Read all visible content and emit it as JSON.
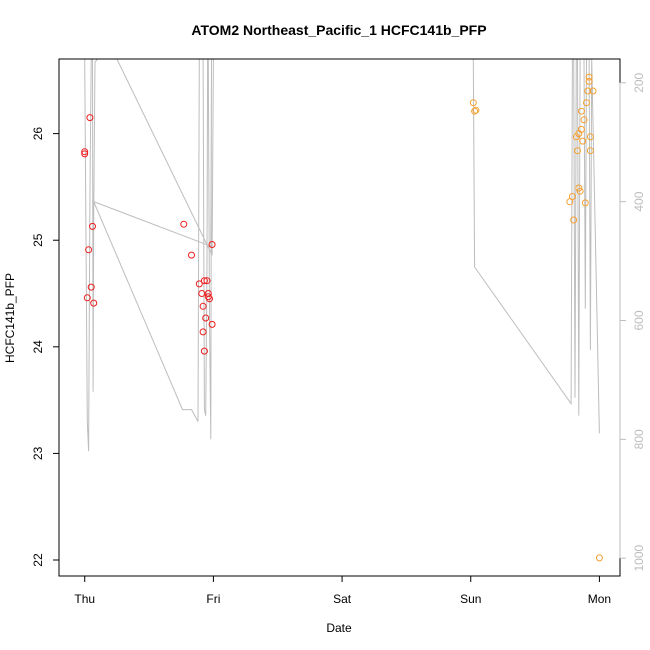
{
  "chart_data": {
    "type": "scatter",
    "title": "ATOM2 Northeast_Pacific_1 HCFC141b_PFP",
    "xlabel": "Date",
    "ylabel": "HCFC141b_PFP",
    "x_ticks": [
      {
        "label": "Thu",
        "value": 0
      },
      {
        "label": "Fri",
        "value": 1
      },
      {
        "label": "Sat",
        "value": 2
      },
      {
        "label": "Sun",
        "value": 3
      },
      {
        "label": "Mon",
        "value": 4
      }
    ],
    "xlim": [
      -0.2,
      4.16
    ],
    "ylim": [
      21.85,
      26.7
    ],
    "y_ticks": [
      22,
      23,
      24,
      25,
      26
    ],
    "y2_ticks": [
      200,
      400,
      600,
      800,
      1000
    ],
    "y2lim": [
      1030,
      160
    ],
    "grid": false,
    "colors": {
      "series_red": "#ee1c1c",
      "series_orange": "#f5a030",
      "altitude_line": "#bdbdbd",
      "axis": "#000000"
    },
    "series": [
      {
        "color": "red",
        "points": [
          [
            0.0,
            25.83
          ],
          [
            0.0,
            25.81
          ],
          [
            0.02,
            24.46
          ],
          [
            0.03,
            24.91
          ],
          [
            0.04,
            26.15
          ],
          [
            0.05,
            24.56
          ],
          [
            0.06,
            25.13
          ],
          [
            0.07,
            24.41
          ],
          [
            0.77,
            25.15
          ],
          [
            0.83,
            24.86
          ],
          [
            0.89,
            24.59
          ],
          [
            0.91,
            24.5
          ],
          [
            0.92,
            24.38
          ],
          [
            0.92,
            24.14
          ],
          [
            0.93,
            23.96
          ],
          [
            0.93,
            24.62
          ],
          [
            0.94,
            24.27
          ],
          [
            0.95,
            24.62
          ],
          [
            0.96,
            24.47
          ],
          [
            0.96,
            24.5
          ],
          [
            0.97,
            24.45
          ],
          [
            0.99,
            24.96
          ],
          [
            0.99,
            24.21
          ]
        ]
      },
      {
        "color": "orange",
        "points": [
          [
            3.02,
            26.29
          ],
          [
            3.03,
            26.21
          ],
          [
            3.04,
            26.22
          ],
          [
            3.77,
            25.36
          ],
          [
            3.79,
            25.41
          ],
          [
            3.8,
            25.19
          ],
          [
            3.82,
            25.97
          ],
          [
            3.83,
            25.84
          ],
          [
            3.84,
            26.0
          ],
          [
            3.84,
            25.49
          ],
          [
            3.85,
            25.46
          ],
          [
            3.86,
            26.04
          ],
          [
            3.86,
            26.21
          ],
          [
            3.87,
            25.93
          ],
          [
            3.88,
            26.13
          ],
          [
            3.89,
            25.35
          ],
          [
            3.9,
            26.29
          ],
          [
            3.91,
            26.4
          ],
          [
            3.92,
            26.49
          ],
          [
            3.92,
            26.53
          ],
          [
            3.93,
            25.97
          ],
          [
            3.93,
            25.84
          ],
          [
            3.95,
            26.4
          ],
          [
            4.0,
            22.02
          ]
        ]
      }
    ],
    "altitude_trace": [
      [
        0.0,
        160
      ],
      [
        0.02,
        770
      ],
      [
        0.03,
        820
      ],
      [
        0.04,
        400
      ],
      [
        0.05,
        160
      ],
      [
        0.06,
        160
      ],
      [
        0.065,
        720
      ],
      [
        0.07,
        420
      ],
      [
        0.08,
        165
      ],
      [
        0.1,
        160
      ],
      [
        0.25,
        160
      ],
      [
        0.99,
        490
      ],
      [
        1.0,
        160
      ],
      [
        0.92,
        160
      ],
      [
        0.93,
        750
      ],
      [
        0.94,
        760
      ],
      [
        0.95,
        500
      ],
      [
        0.955,
        160
      ],
      [
        0.96,
        160
      ],
      [
        0.97,
        600
      ],
      [
        0.98,
        800
      ],
      [
        0.985,
        160
      ],
      [
        0.98,
        475
      ],
      [
        0.07,
        400
      ],
      [
        0.76,
        750
      ],
      [
        0.83,
        750
      ],
      [
        0.88,
        770
      ],
      [
        0.89,
        160
      ],
      [
        3.0,
        160
      ],
      [
        3.02,
        160
      ],
      [
        3.03,
        510
      ],
      [
        3.78,
        740
      ],
      [
        3.79,
        160
      ],
      [
        3.8,
        160
      ],
      [
        3.81,
        730
      ],
      [
        3.82,
        160
      ],
      [
        3.83,
        160
      ],
      [
        3.84,
        760
      ],
      [
        3.85,
        160
      ],
      [
        3.88,
        160
      ],
      [
        3.89,
        580
      ],
      [
        3.9,
        160
      ],
      [
        3.92,
        160
      ],
      [
        3.93,
        650
      ],
      [
        3.94,
        160
      ],
      [
        4.0,
        790
      ]
    ]
  }
}
